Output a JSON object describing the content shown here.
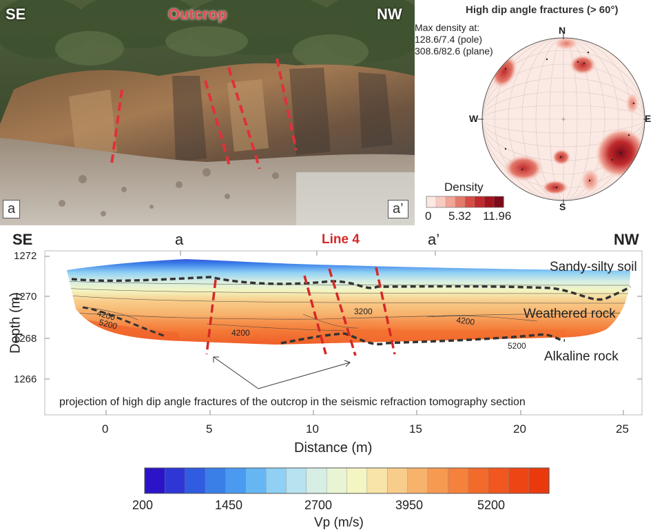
{
  "figure": {
    "photo": {
      "label_left": "SE",
      "label_center": "Outcrop",
      "label_right": "NW",
      "corner_left": "a",
      "corner_right": "a’",
      "accent_color": "#e0313a"
    },
    "stereonet": {
      "title": "High dip angle fractures (> 60°)",
      "note_line1": "Max density at:",
      "note_line2": "128.6/7.4 (pole)",
      "note_line3": "308.6/82.6 (plane)",
      "dir_n": "N",
      "dir_s": "S",
      "dir_e": "E",
      "dir_w": "W",
      "density_title": "Density",
      "density_ticks": [
        "0",
        "5.32",
        "11.96"
      ],
      "density_colors": [
        "#fbe8e3",
        "#f7cbc0",
        "#f0a596",
        "#e37a6b",
        "#d44d45",
        "#c02a2c",
        "#a01420",
        "#7d0a18"
      ]
    },
    "section": {
      "label_se": "SE",
      "label_a": "a",
      "label_line": "Line 4",
      "label_a_prime": "a’",
      "label_nw": "NW",
      "layer_top": "Sandy-silty soil",
      "layer_mid": "Weathered rock",
      "layer_bottom": "Alkaline rock",
      "annotation": "projection of high dip angle fractures of the outcrop in the seismic refraction tomography section",
      "contour_labels": [
        "4200",
        "5200",
        "4200",
        "3200",
        "4200",
        "5200"
      ],
      "line_color": "#d62828"
    },
    "colorbar": {
      "title": "Vp (m/s)",
      "ticks": [
        "200",
        "1450",
        "2700",
        "3950",
        "5200"
      ],
      "colors": [
        "#2b14c8",
        "#2e37d6",
        "#2f5ce0",
        "#3a7ee8",
        "#4a9af0",
        "#66b6f3",
        "#8fd0f4",
        "#b7e2ef",
        "#d6eee3",
        "#e8f4d3",
        "#f4f5c2",
        "#f8e3a8",
        "#f8cc8a",
        "#f7b26c",
        "#f69a52",
        "#f5823c",
        "#f36b2b",
        "#f1571e",
        "#ee4514",
        "#ea3a0d"
      ]
    }
  },
  "chart_data": {
    "type": "heatmap",
    "title": "",
    "xlabel": "Distance (m)",
    "ylabel": "Depth (m)",
    "xlim": [
      -3,
      26
    ],
    "ylim": [
      1265,
      1272
    ],
    "x_ticks": [
      "0",
      "5",
      "10",
      "15",
      "20",
      "25"
    ],
    "y_ticks": [
      "1272",
      "1270",
      "1268",
      "1266"
    ],
    "grid": false,
    "colorbar_label": "Vp (m/s)",
    "colorbar_range": [
      200,
      5700
    ],
    "dashed_contours": [
      {
        "name": "upper boundary",
        "x": [
          -1.5,
          1,
          3,
          5,
          7,
          9,
          10.5,
          12,
          13.5,
          15,
          17,
          19,
          21,
          22.5,
          24.5
        ],
        "y": [
          1270.9,
          1270.7,
          1270.6,
          1271.0,
          1270.6,
          1270.5,
          1270.6,
          1270.2,
          1270.5,
          1270.5,
          1270.5,
          1270.5,
          1270.6,
          1270.0,
          1270.9
        ]
      },
      {
        "name": "lower boundary",
        "x": [
          8.5,
          10,
          11,
          12,
          13,
          14,
          16,
          18,
          20,
          21,
          22.3
        ],
        "y": [
          1267.8,
          1268.0,
          1268.2,
          1268.1,
          1267.6,
          1267.7,
          1267.9,
          1268.0,
          1267.9,
          1268.2,
          1267.9
        ]
      }
    ],
    "fracture_projections_x": [
      [
        5,
        4.8
      ],
      [
        9.7,
        10.6
      ],
      [
        10.8,
        12.2
      ],
      [
        13,
        14.2
      ]
    ]
  }
}
